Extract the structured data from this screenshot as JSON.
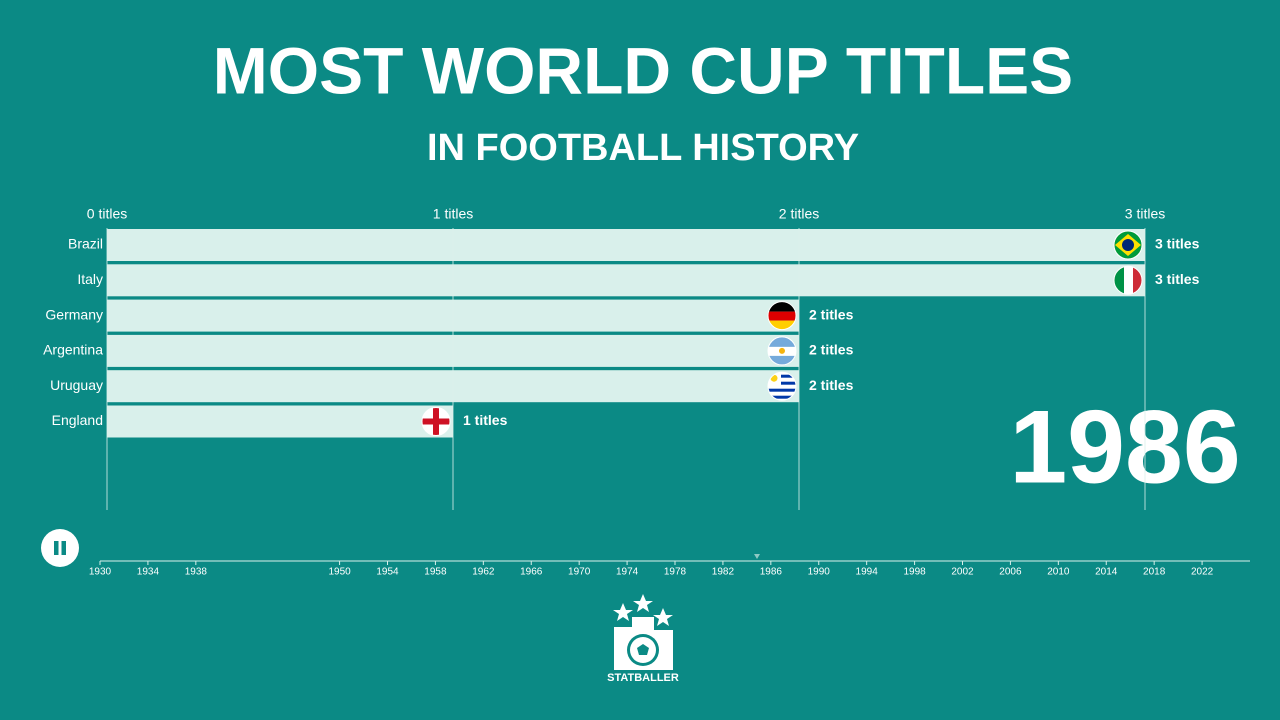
{
  "chart_data": {
    "type": "bar",
    "orientation": "horizontal",
    "title": "MOST WORLD CUP TITLES",
    "subtitle": "IN FOOTBALL HISTORY",
    "categories": [
      "Brazil",
      "Italy",
      "Germany",
      "Argentina",
      "Uruguay",
      "England"
    ],
    "values": [
      3,
      3,
      2,
      2,
      2,
      1
    ],
    "value_labels": [
      "3 titles",
      "3 titles",
      "2 titles",
      "2 titles",
      "2 titles",
      "1 titles"
    ],
    "color": "#d9f0eb",
    "xlim": [
      0,
      3
    ],
    "xticks": [
      {
        "value": 0,
        "label": "0 titles"
      },
      {
        "value": 1,
        "label": "1 titles"
      },
      {
        "value": 2,
        "label": "2 titles"
      },
      {
        "value": 3,
        "label": "3 titles"
      }
    ],
    "grid": true,
    "annotation": "1986",
    "timeline": {
      "xlim": [
        1930,
        2026
      ],
      "xticks": [
        1930,
        1934,
        1938,
        1950,
        1954,
        1958,
        1962,
        1966,
        1970,
        1974,
        1978,
        1982,
        1986,
        1990,
        1994,
        1998,
        2002,
        2006,
        2010,
        2014,
        2018,
        2022
      ]
    },
    "logo": "STATBALLER"
  }
}
